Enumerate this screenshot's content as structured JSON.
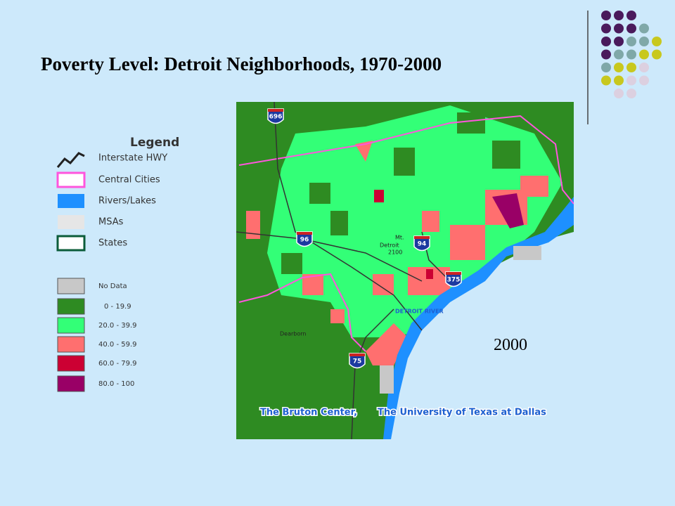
{
  "title": "Poverty Level: Detroit Neighborhoods, 1970-2000",
  "legend": {
    "title": "Legend",
    "features": [
      "Interstate HWY",
      "Central Cities",
      "Rivers/Lakes",
      "MSAs",
      "States"
    ],
    "classes": [
      "No Data",
      "0 - 19.9",
      "20.0 - 39.9",
      "40.0 - 59.9",
      "60.0 - 79.9",
      "80.0 - 100"
    ]
  },
  "map": {
    "shields": [
      "696",
      "96",
      "94",
      "375",
      "75"
    ],
    "places": [
      "Mt.",
      "Detroit",
      "2100",
      "DETROIT RIVER",
      "Dearborn"
    ],
    "credit": [
      "The Bruton Center,",
      "The University of Texas at Dallas"
    ]
  },
  "year": "2000"
}
